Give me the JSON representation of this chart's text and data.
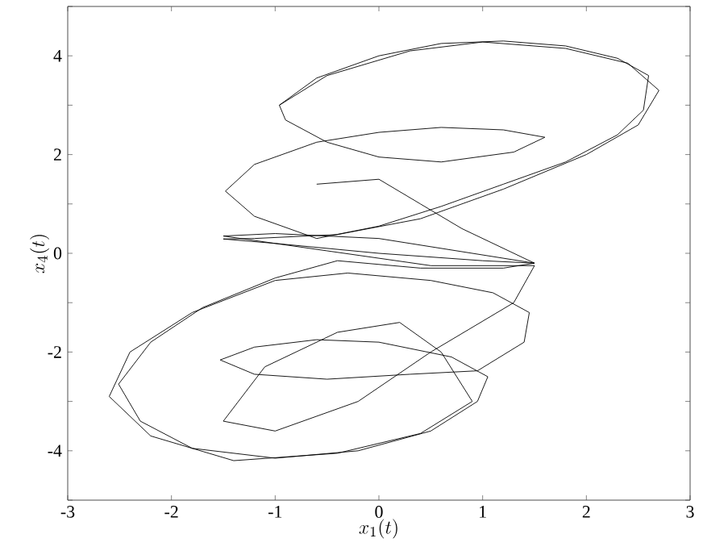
{
  "chart_data": {
    "type": "line",
    "xlabel": "x_1(t)",
    "ylabel": "x_4(t)",
    "xlim": [
      -3,
      3
    ],
    "ylim": [
      -5,
      5
    ],
    "xticks": [
      -3,
      -2,
      -1,
      0,
      1,
      2,
      3
    ],
    "yticks": [
      {
        "value": -5,
        "label": null
      },
      -4,
      {
        "value": -3,
        "label": null
      },
      -2,
      {
        "value": -1,
        "label": null
      },
      0,
      {
        "value": 1,
        "label": null
      },
      2,
      {
        "value": 3,
        "label": null
      },
      4,
      {
        "value": 5,
        "label": null
      }
    ],
    "series": [
      {
        "color": "#000000",
        "x": [
          -0.96,
          -0.6,
          0,
          0.6,
          1.2,
          1.8,
          2.3,
          2.6,
          2.55,
          2.3,
          1.8,
          1.2,
          0.6,
          0,
          -0.6,
          -1.2,
          -1.48,
          -1.2,
          -0.6,
          0,
          0.6,
          1.2,
          1.6,
          1.3,
          0.6,
          0,
          -0.5,
          -0.9,
          -0.96,
          -0.5,
          0.3,
          1.0,
          1.8,
          2.4,
          2.7,
          2.5,
          2.0,
          1.2,
          0.4,
          -0.4,
          -1.2,
          -1.5,
          -1.0,
          0,
          1.0,
          1.5,
          1.2,
          0.4,
          -0.4,
          -1.0,
          -1.7,
          -2.2,
          -2.51,
          -2.3,
          -1.8,
          -1.0,
          -0.2,
          0.5,
          0.95,
          1.05,
          0.7,
          0,
          -0.6,
          -1.2,
          -1.53,
          -1.2,
          -0.5,
          0.3,
          0.95,
          1.4,
          1.45,
          1.1,
          0.5,
          -0.3,
          -1.0,
          -1.8,
          -2.4,
          -2.6,
          -2.2,
          -1.4,
          -0.4,
          0.4,
          0.9,
          0.6,
          0.2,
          -0.4,
          -1.1,
          -1.5,
          -1.0,
          -0.2,
          0.5,
          1.3,
          1.5,
          0.5,
          -0.5,
          -1.5,
          -1.0,
          0,
          1.5,
          0.8,
          0.4,
          0.0,
          -0.6
        ],
        "values": [
          3.0,
          3.55,
          4.0,
          4.25,
          4.3,
          4.2,
          3.95,
          3.6,
          2.9,
          2.4,
          1.85,
          1.4,
          0.95,
          0.55,
          0.3,
          0.75,
          1.26,
          1.8,
          2.25,
          2.45,
          2.55,
          2.5,
          2.35,
          2.05,
          1.85,
          1.95,
          2.25,
          2.7,
          3.0,
          3.6,
          4.1,
          4.28,
          4.15,
          3.85,
          3.3,
          2.6,
          2.0,
          1.3,
          0.7,
          0.38,
          0.3,
          0.29,
          0.2,
          0.0,
          -0.15,
          -0.2,
          -0.3,
          -0.3,
          -0.15,
          -0.5,
          -1.1,
          -1.8,
          -2.65,
          -3.4,
          -3.95,
          -4.15,
          -4.0,
          -3.6,
          -3.0,
          -2.5,
          -2.1,
          -1.8,
          -1.75,
          -1.9,
          -2.16,
          -2.45,
          -2.55,
          -2.45,
          -2.38,
          -1.8,
          -1.2,
          -0.8,
          -0.55,
          -0.4,
          -0.55,
          -1.2,
          -2.0,
          -2.9,
          -3.7,
          -4.2,
          -4.05,
          -3.65,
          -3.0,
          -2.0,
          -1.4,
          -1.6,
          -2.3,
          -3.4,
          -3.6,
          -3.0,
          -2.0,
          -1.0,
          -0.25,
          -0.25,
          0.05,
          0.35,
          0.4,
          0.3,
          -0.2,
          0.5,
          1.0,
          1.5,
          1.4
        ]
      }
    ]
  }
}
